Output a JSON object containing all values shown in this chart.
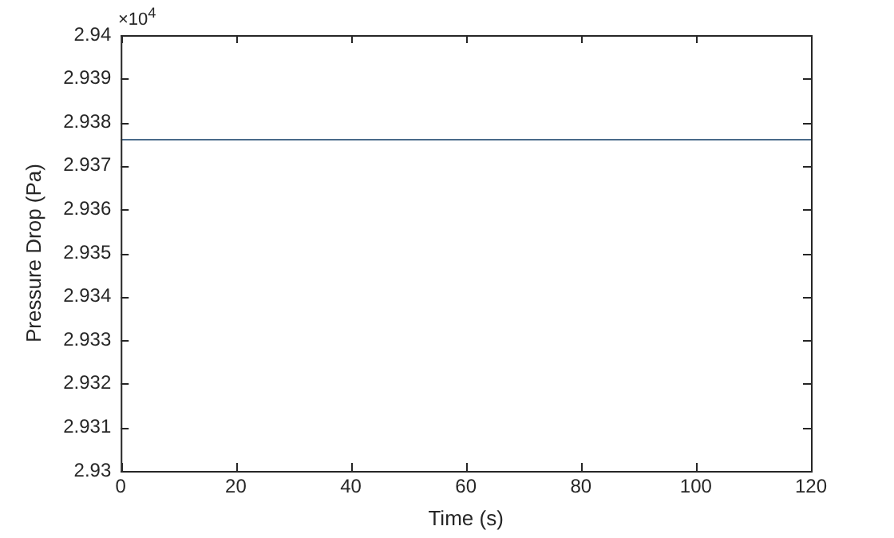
{
  "chart_data": {
    "type": "line",
    "xlabel": "Time (s)",
    "ylabel": "Pressure Drop (Pa)",
    "annotations": [
      "×10$^{4}$"
    ],
    "x": [
      0,
      120
    ],
    "series": [
      {
        "color": "#4a6a8a",
        "values": [
          2.9376,
          2.9376
        ]
      }
    ],
    "xlim": [
      0,
      120
    ],
    "xticks": [
      0,
      20,
      40,
      60,
      80,
      100,
      120
    ],
    "ylim": [
      2.93,
      2.94
    ],
    "yticks": [
      2.93,
      2.931,
      2.932,
      2.933,
      2.934,
      2.935,
      2.936,
      2.937,
      2.938,
      2.939,
      2.94
    ],
    "grid": false,
    "legend": false,
    "marker": "none",
    "line_style": "solid"
  }
}
